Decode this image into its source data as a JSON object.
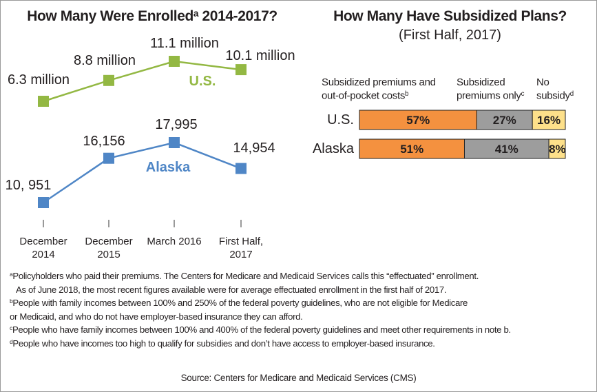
{
  "chart_data": [
    {
      "type": "line",
      "title": {
        "text": "How Many Were Enrolled",
        "note": "a",
        "suffix": " 2014-2017?"
      },
      "categories": [
        "December 2014",
        "December 2015",
        "March 2016",
        "First Half, 2017"
      ],
      "series": [
        {
          "name": "U.S.",
          "color": "#93b843",
          "values": [
            6.3,
            8.8,
            11.1,
            10.1
          ],
          "value_labels": [
            "6.3 million",
            "8.8 million",
            "11.1 million",
            "10.1 million"
          ]
        },
        {
          "name": "Alaska",
          "color": "#4f86c6",
          "values": [
            10951,
            16156,
            17995,
            14954
          ],
          "value_labels": [
            "10, 951",
            "16,156",
            "17,995",
            "14,954"
          ]
        }
      ]
    },
    {
      "type": "stacked_bar_horizontal",
      "title": "How Many Have Subsidized Plans?",
      "subtitle": "(First Half, 2017)",
      "categories": [
        "U.S.",
        "Alaska"
      ],
      "xlim": [
        0,
        100
      ],
      "series": [
        {
          "name": "Subsidized premiums and out-of-pocket costs",
          "note": "b",
          "color": "#f4913f",
          "values": [
            57,
            51
          ],
          "value_labels": [
            "57%",
            "51%"
          ]
        },
        {
          "name": "Subsidized premiums only",
          "note": "c",
          "color": "#9d9d9d",
          "values": [
            27,
            41
          ],
          "value_labels": [
            "27%",
            "41%"
          ]
        },
        {
          "name": "No subsidy",
          "note": "d",
          "color": "#fde08a",
          "values": [
            16,
            8
          ],
          "value_labels": [
            "16%",
            "8%"
          ]
        }
      ]
    }
  ],
  "footnotes": [
    {
      "mark": "a",
      "lines": [
        "Policyholders who paid their premiums. The Centers for Medicare and Medicaid Services calls this “effectuated” enrollment.",
        "As of June 2018, the most recent figures available were for average effectuated enrollment in the first half of 2017."
      ]
    },
    {
      "mark": "b",
      "lines": [
        "People with family incomes between 100% and 250% of the federal poverty guidelines, who are not eligible for Medicare",
        "or Medicaid, and who do not have employer-based insurance they can afford."
      ]
    },
    {
      "mark": "c",
      "lines": [
        "People who have family incomes between 100% and 400% of the federal poverty guidelines and meet other requirements in note b."
      ]
    },
    {
      "mark": "d",
      "lines": [
        "People who have incomes too high to qualify for subsidies and don’t have access to employer-based insurance."
      ]
    }
  ],
  "source": "Source: Centers for Medicare and Medicaid Services (CMS)"
}
